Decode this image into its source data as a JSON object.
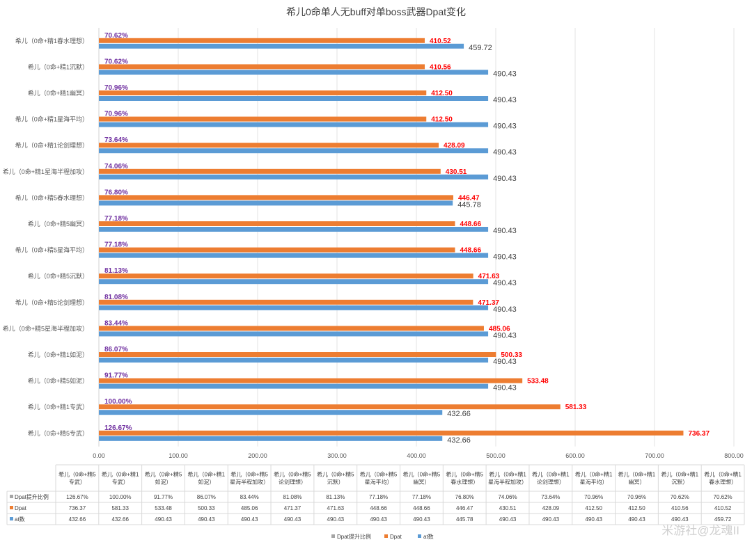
{
  "watermark": "米游社@龙魂II",
  "chart_data": {
    "type": "bar",
    "orientation": "horizontal",
    "title": "希儿0命单人无buff对单boss武器Dpat变化",
    "categories": [
      "希儿（0命+精1春水理想）",
      "希儿（0命+精1沉默）",
      "希儿（0命+精1幽冥）",
      "希儿（0命+精1星海平均）",
      "希儿（0命+精1论剑理想）",
      "希儿（0命+精1星海半程加攻）",
      "希儿（0命+精5春水理想）",
      "希儿（0命+精5幽冥）",
      "希儿（0命+精5星海平均）",
      "希儿（0命+精5沉默）",
      "希儿（0命+精5论剑理想）",
      "希儿（0命+精5星海半程加攻）",
      "希儿（0命+精1如泥）",
      "希儿（0命+精5如泥）",
      "希儿（0命+精1专武）",
      "希儿（0命+精5专武）"
    ],
    "series": [
      {
        "name": "Dpat提升比例",
        "color": "#A5A5A5",
        "values": [
          "70.62%",
          "70.62%",
          "70.96%",
          "70.96%",
          "73.64%",
          "74.06%",
          "76.80%",
          "77.18%",
          "77.18%",
          "81.13%",
          "81.08%",
          "83.44%",
          "86.07%",
          "91.77%",
          "100.00%",
          "126.67%"
        ]
      },
      {
        "name": "Dpat",
        "color": "#ED7D31",
        "values": [
          410.52,
          410.56,
          412.5,
          412.5,
          428.09,
          430.51,
          446.47,
          448.66,
          448.66,
          471.63,
          471.37,
          485.06,
          500.33,
          533.48,
          581.33,
          736.37
        ]
      },
      {
        "name": "at数",
        "color": "#5B9BD5",
        "values": [
          459.72,
          490.43,
          490.43,
          490.43,
          490.43,
          490.43,
          445.78,
          490.43,
          490.43,
          490.43,
          490.43,
          490.43,
          490.43,
          490.43,
          432.66,
          432.66
        ]
      }
    ],
    "xlim": [
      0,
      800
    ],
    "xticks": [
      "0.00",
      "100.00",
      "200.00",
      "300.00",
      "400.00",
      "500.00",
      "600.00",
      "700.00",
      "800.00"
    ],
    "grid": true,
    "legend": "bottom",
    "data_table": {
      "columns": [
        "希儿（0命+精5专武）",
        "希儿（0命+精1专武）",
        "希儿（0命+精5如泥）",
        "希儿（0命+精1如泥）",
        "希儿（0命+精5星海半程加攻）",
        "希儿（0命+精5论剑理想）",
        "希儿（0命+精5沉默）",
        "希儿（0命+精5星海平均）",
        "希儿（0命+精5幽冥）",
        "希儿（0命+精5春水理想）",
        "希儿（0命+精1星海半程加攻）",
        "希儿（0命+精1论剑理想）",
        "希儿（0命+精1星海平均）",
        "希儿（0命+精1幽冥）",
        "希儿（0命+精1沉默）",
        "希儿（0命+精1春水理想）"
      ],
      "rows": [
        {
          "name": "Dpat提升比例",
          "values": [
            "126.67%",
            "100.00%",
            "91.77%",
            "86.07%",
            "83.44%",
            "81.08%",
            "81.13%",
            "77.18%",
            "77.18%",
            "76.80%",
            "74.06%",
            "73.64%",
            "70.96%",
            "70.96%",
            "70.62%",
            "70.62%"
          ]
        },
        {
          "name": "Dpat",
          "values": [
            "736.37",
            "581.33",
            "533.48",
            "500.33",
            "485.06",
            "471.37",
            "471.63",
            "448.66",
            "448.66",
            "446.47",
            "430.51",
            "428.09",
            "412.50",
            "412.50",
            "410.56",
            "410.52"
          ]
        },
        {
          "name": "at数",
          "values": [
            "432.66",
            "432.66",
            "490.43",
            "490.43",
            "490.43",
            "490.43",
            "490.43",
            "490.43",
            "490.43",
            "445.78",
            "490.43",
            "490.43",
            "490.43",
            "490.43",
            "490.43",
            "459.72"
          ]
        }
      ]
    }
  }
}
